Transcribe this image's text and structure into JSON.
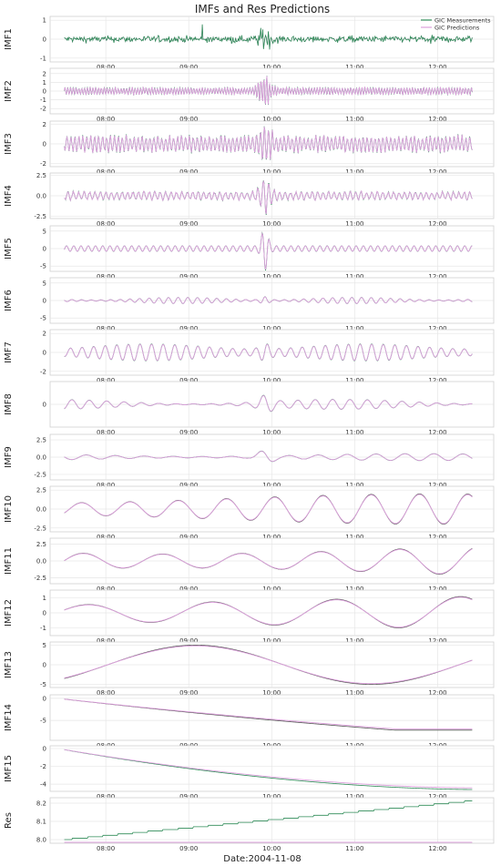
{
  "chart_data": {
    "type": "line",
    "title": "IMFs and Res Predictions",
    "xlabel": "Date:2004-11-08",
    "x_ticks": [
      "08:00",
      "09:00",
      "10:00",
      "11:00",
      "12:00"
    ],
    "x_range": [
      "07:25",
      "12:30"
    ],
    "grid": true,
    "legend": {
      "placement": "top-right",
      "entries": [
        {
          "name": "GIC Measurements",
          "color": "#2e8b57"
        },
        {
          "name": "GIC Predictions",
          "color": "#dda0dd"
        }
      ]
    },
    "colors": {
      "measurements": "#2e8b57",
      "predictions": "#dda0dd",
      "measurements_dark": "#555555"
    },
    "panels": [
      {
        "label": "IMF1",
        "ylim": [
          -1.2,
          1.2
        ],
        "yticks": [
          {
            "v": 1,
            "t": "1"
          },
          {
            "v": 0,
            "t": "0"
          },
          {
            "v": -1,
            "t": "-1"
          }
        ]
      },
      {
        "label": "IMF2",
        "ylim": [
          -2.6,
          2.6
        ],
        "yticks": [
          {
            "v": 2,
            "t": "2"
          },
          {
            "v": 1,
            "t": "1"
          },
          {
            "v": 0,
            "t": "0"
          },
          {
            "v": -1,
            "t": "-1"
          },
          {
            "v": -2,
            "t": "-2"
          }
        ]
      },
      {
        "label": "IMF3",
        "ylim": [
          -2.3,
          2.3
        ],
        "yticks": [
          {
            "v": 2,
            "t": "2"
          },
          {
            "v": 0,
            "t": "0"
          },
          {
            "v": -2,
            "t": "-2"
          }
        ]
      },
      {
        "label": "IMF4",
        "ylim": [
          -2.8,
          2.8
        ],
        "yticks": [
          {
            "v": 2.5,
            "t": "2.5"
          },
          {
            "v": 0,
            "t": "0.0"
          },
          {
            "v": -2.5,
            "t": "-2.5"
          }
        ]
      },
      {
        "label": "IMF5",
        "ylim": [
          -6.5,
          6.5
        ],
        "yticks": [
          {
            "v": 5,
            "t": "5"
          },
          {
            "v": 0,
            "t": "0"
          },
          {
            "v": -5,
            "t": "-5"
          }
        ]
      },
      {
        "label": "IMF6",
        "ylim": [
          -6.5,
          6.5
        ],
        "yticks": [
          {
            "v": 5,
            "t": "5"
          },
          {
            "v": 0,
            "t": "0"
          },
          {
            "v": -5,
            "t": "-5"
          }
        ]
      },
      {
        "label": "IMF7",
        "ylim": [
          -2.4,
          2.4
        ],
        "yticks": [
          {
            "v": 2,
            "t": "2"
          },
          {
            "v": 0,
            "t": "0"
          },
          {
            "v": -2,
            "t": "-2"
          }
        ]
      },
      {
        "label": "IMF8",
        "ylim": [
          -4,
          4
        ],
        "yticks": [
          {
            "v": 0,
            "t": "0"
          }
        ]
      },
      {
        "label": "IMF9",
        "ylim": [
          -3.3,
          3.3
        ],
        "yticks": [
          {
            "v": 2.5,
            "t": "2.5"
          },
          {
            "v": 0,
            "t": "0.0"
          },
          {
            "v": -2.5,
            "t": "-2.5"
          }
        ]
      },
      {
        "label": "IMF10",
        "ylim": [
          -3,
          3
        ],
        "yticks": [
          {
            "v": 2.5,
            "t": "2.5"
          },
          {
            "v": 0,
            "t": "0.0"
          },
          {
            "v": -2.5,
            "t": "-2.5"
          }
        ]
      },
      {
        "label": "IMF11",
        "ylim": [
          -3.4,
          3.4
        ],
        "yticks": [
          {
            "v": 2.5,
            "t": "2.5"
          },
          {
            "v": 0,
            "t": "0.0"
          },
          {
            "v": -2.5,
            "t": "-2.5"
          }
        ]
      },
      {
        "label": "IMF12",
        "ylim": [
          -1.5,
          1.5
        ],
        "yticks": [
          {
            "v": 1,
            "t": "1"
          },
          {
            "v": 0,
            "t": "0"
          },
          {
            "v": -1,
            "t": "-1"
          }
        ]
      },
      {
        "label": "IMF13",
        "ylim": [
          -5.8,
          5.8
        ],
        "yticks": [
          {
            "v": 5,
            "t": "5"
          },
          {
            "v": 0,
            "t": "0"
          },
          {
            "v": -5,
            "t": "-5"
          }
        ]
      },
      {
        "label": "IMF14",
        "ylim": [
          -9.5,
          0.8
        ],
        "yticks": [
          {
            "v": 0,
            "t": "0"
          },
          {
            "v": -5,
            "t": "-5"
          }
        ]
      },
      {
        "label": "IMF15",
        "ylim": [
          -4.8,
          0.3
        ],
        "yticks": [
          {
            "v": 0,
            "t": "0"
          },
          {
            "v": -2,
            "t": "-2"
          },
          {
            "v": -4,
            "t": "-4"
          }
        ]
      },
      {
        "label": "Res",
        "ylim": [
          7.98,
          8.23
        ],
        "yticks": [
          {
            "v": 8.2,
            "t": "8.2"
          },
          {
            "v": 8.1,
            "t": "8.1"
          },
          {
            "v": 8.0,
            "t": "8.0"
          }
        ]
      }
    ]
  }
}
